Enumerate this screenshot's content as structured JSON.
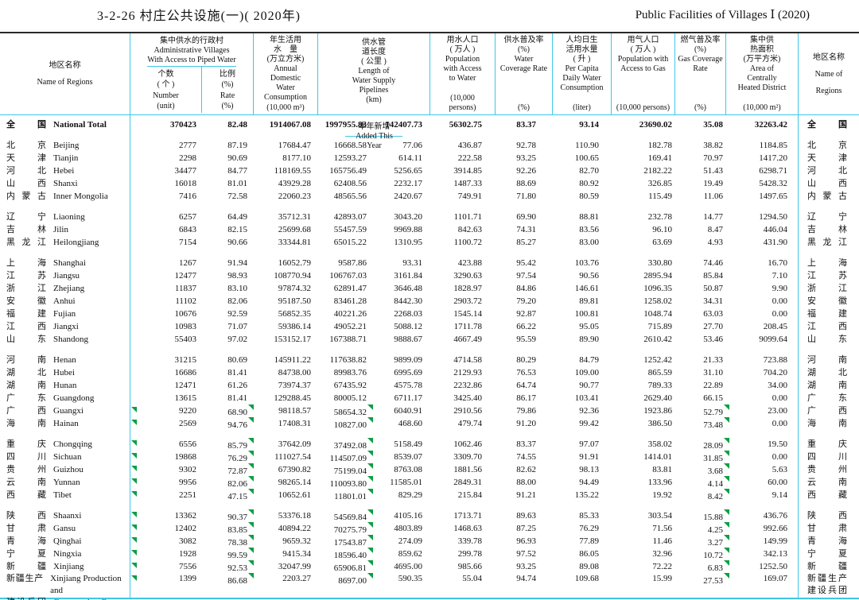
{
  "title": {
    "zh": "3-2-26  村庄公共设施(一)( 2020年)",
    "en": "Public Facilities of Villages  Ⅰ (2020)"
  },
  "colors": {
    "grid": "#3ec7e8",
    "flag_green": "#0e9e45",
    "top_rule": "#2a2a2a"
  },
  "header": {
    "left_region": {
      "zh": "地区名称",
      "en": "Name of Regions"
    },
    "right_region": {
      "lines": "地区名称|Name of|Regions"
    },
    "piped_group": {
      "label": "集中供水的行政村|Administrative Villages|With Access to Piped Water",
      "number": "个数|( 个 )|Number|(unit)",
      "rate": "比例|(%)|Rate|(%)"
    },
    "annual": {
      "label": "年生活用|水　量|(万立方米)|Annual|Domestic|Water|Consumption",
      "unit": "(10,000 m³)"
    },
    "pipeline": {
      "label": "供水管|道长度|( 公里 )|Length of|Water Supply|Pipelines",
      "unit": "(km)",
      "added": "本年新增|Added  This|Year"
    },
    "pop_water": {
      "label": "用水人口|( 万人 )|Population|with Access|to Water",
      "unit": "(10,000|persons)"
    },
    "water_cov": {
      "label": "供水普及率|(%)|Water|Coverage Rate",
      "unit": "(%)"
    },
    "per_capita": {
      "label": "人均日生|活用水量|( 升 )|Per Capita|Daily Water|Consumption",
      "unit": "(liter)"
    },
    "pop_gas": {
      "label": "用气人口|( 万人 )|Population with|Access to Gas",
      "unit": "(10,000 persons)"
    },
    "gas_cov": {
      "label": "燃气普及率|(%)|Gas Coverage|Rate",
      "unit": "(%)"
    },
    "heated": {
      "label": "集中供|热面积|(万平方米)|Area of|Centrally|Heated District",
      "unit": "(10,000 m²)"
    }
  },
  "rows": [
    {
      "zh": "全国",
      "en": "National Total",
      "bold": true,
      "values": [
        "370423",
        "82.48",
        "1914067.08",
        "1997955.83",
        "142407.73",
        "56302.75",
        "83.37",
        "93.14",
        "23690.02",
        "35.08",
        "32263.42"
      ]
    },
    {
      "zh": "北京",
      "en": "Beijing",
      "gap": true,
      "values": [
        "2777",
        "87.19",
        "17684.47",
        "16668.58",
        "77.06",
        "436.87",
        "92.78",
        "110.90",
        "182.78",
        "38.82",
        "1184.85"
      ]
    },
    {
      "zh": "天津",
      "en": "Tianjin",
      "values": [
        "2298",
        "90.69",
        "8177.10",
        "12593.27",
        "614.11",
        "222.58",
        "93.25",
        "100.65",
        "169.41",
        "70.97",
        "1417.20"
      ]
    },
    {
      "zh": "河北",
      "en": "Hebei",
      "values": [
        "34477",
        "84.77",
        "118169.55",
        "165756.49",
        "5256.65",
        "3914.85",
        "92.26",
        "82.70",
        "2182.22",
        "51.43",
        "6298.71"
      ]
    },
    {
      "zh": "山西",
      "en": "Shanxi",
      "values": [
        "16018",
        "81.01",
        "43929.28",
        "62408.56",
        "2232.17",
        "1487.33",
        "88.69",
        "80.92",
        "326.85",
        "19.49",
        "5428.32"
      ]
    },
    {
      "zh": "内蒙古",
      "en": "Inner Mongolia",
      "values": [
        "7416",
        "72.58",
        "22060.23",
        "48565.56",
        "2420.67",
        "749.91",
        "71.80",
        "80.59",
        "115.49",
        "11.06",
        "1497.65"
      ]
    },
    {
      "zh": "辽宁",
      "en": "Liaoning",
      "gap": true,
      "values": [
        "6257",
        "64.49",
        "35712.31",
        "42893.07",
        "3043.20",
        "1101.71",
        "69.90",
        "88.81",
        "232.78",
        "14.77",
        "1294.50"
      ]
    },
    {
      "zh": "吉林",
      "en": "Jilin",
      "values": [
        "6843",
        "82.15",
        "25699.68",
        "55457.59",
        "9969.88",
        "842.63",
        "74.31",
        "83.56",
        "96.10",
        "8.47",
        "446.04"
      ]
    },
    {
      "zh": "黑龙江",
      "en": "Heilongjiang",
      "values": [
        "7154",
        "90.66",
        "33344.81",
        "65015.22",
        "1310.95",
        "1100.72",
        "85.27",
        "83.00",
        "63.69",
        "4.93",
        "431.90"
      ]
    },
    {
      "zh": "上海",
      "en": "Shanghai",
      "gap": true,
      "values": [
        "1267",
        "91.94",
        "16052.79",
        "9587.86",
        "93.31",
        "423.88",
        "95.42",
        "103.76",
        "330.80",
        "74.46",
        "16.70"
      ]
    },
    {
      "zh": "江苏",
      "en": "Jiangsu",
      "values": [
        "12477",
        "98.93",
        "108770.94",
        "106767.03",
        "3161.84",
        "3290.63",
        "97.54",
        "90.56",
        "2895.94",
        "85.84",
        "7.10"
      ]
    },
    {
      "zh": "浙江",
      "en": "Zhejiang",
      "values": [
        "11837",
        "83.10",
        "97874.32",
        "62891.47",
        "3646.48",
        "1828.97",
        "84.86",
        "146.61",
        "1096.35",
        "50.87",
        "9.90"
      ]
    },
    {
      "zh": "安徽",
      "en": "Anhui",
      "values": [
        "11102",
        "82.06",
        "95187.50",
        "83461.28",
        "8442.30",
        "2903.72",
        "79.20",
        "89.81",
        "1258.02",
        "34.31",
        "0.00"
      ]
    },
    {
      "zh": "福建",
      "en": "Fujian",
      "values": [
        "10676",
        "92.59",
        "56852.35",
        "40221.26",
        "2268.03",
        "1545.14",
        "92.87",
        "100.81",
        "1048.74",
        "63.03",
        "0.00"
      ]
    },
    {
      "zh": "江西",
      "en": "Jiangxi",
      "values": [
        "10983",
        "71.07",
        "59386.14",
        "49052.21",
        "5088.12",
        "1711.78",
        "66.22",
        "95.05",
        "715.89",
        "27.70",
        "208.45"
      ]
    },
    {
      "zh": "山东",
      "en": "Shandong",
      "values": [
        "55403",
        "97.02",
        "153152.17",
        "167388.71",
        "9888.67",
        "4667.49",
        "95.59",
        "89.90",
        "2610.42",
        "53.46",
        "9099.64"
      ]
    },
    {
      "zh": "河南",
      "en": "Henan",
      "gap": true,
      "values": [
        "31215",
        "80.69",
        "145911.22",
        "117638.82",
        "9899.09",
        "4714.58",
        "80.29",
        "84.79",
        "1252.42",
        "21.33",
        "723.88"
      ]
    },
    {
      "zh": "湖北",
      "en": "Hubei",
      "values": [
        "16686",
        "81.41",
        "84738.00",
        "89983.76",
        "6995.69",
        "2129.93",
        "76.53",
        "109.00",
        "865.59",
        "31.10",
        "704.20"
      ]
    },
    {
      "zh": "湖南",
      "en": "Hunan",
      "values": [
        "12471",
        "61.26",
        "73974.37",
        "67435.92",
        "4575.78",
        "2232.86",
        "64.74",
        "90.77",
        "789.33",
        "22.89",
        "34.00"
      ]
    },
    {
      "zh": "广东",
      "en": "Guangdong",
      "values": [
        "13615",
        "81.41",
        "129288.45",
        "80005.12",
        "6711.17",
        "3425.40",
        "86.17",
        "103.41",
        "2629.40",
        "66.15",
        "0.00"
      ]
    },
    {
      "zh": "广西",
      "en": "Guangxi",
      "flagged": true,
      "values": [
        "9220",
        "68.90",
        "98118.57",
        "58654.32",
        "6040.91",
        "2910.56",
        "79.86",
        "92.36",
        "1923.86",
        "52.79",
        "23.00"
      ]
    },
    {
      "zh": "海南",
      "en": "Hainan",
      "flagged": true,
      "values": [
        "2569",
        "94.76",
        "17408.31",
        "10827.00",
        "468.60",
        "479.74",
        "91.20",
        "99.42",
        "386.50",
        "73.48",
        "0.00"
      ]
    },
    {
      "zh": "重庆",
      "en": "Chongqing",
      "gap": true,
      "flagged": true,
      "values": [
        "6556",
        "85.79",
        "37642.09",
        "37492.08",
        "5158.49",
        "1062.46",
        "83.37",
        "97.07",
        "358.02",
        "28.09",
        "19.50"
      ]
    },
    {
      "zh": "四川",
      "en": "Sichuan",
      "flagged": true,
      "values": [
        "19868",
        "76.29",
        "111027.54",
        "114507.09",
        "8539.07",
        "3309.70",
        "74.55",
        "91.91",
        "1414.01",
        "31.85",
        "0.00"
      ]
    },
    {
      "zh": "贵州",
      "en": "Guizhou",
      "flagged": true,
      "values": [
        "9302",
        "72.87",
        "67390.82",
        "75199.04",
        "8763.08",
        "1881.56",
        "82.62",
        "98.13",
        "83.81",
        "3.68",
        "5.63"
      ]
    },
    {
      "zh": "云南",
      "en": "Yunnan",
      "flagged": true,
      "values": [
        "9956",
        "82.06",
        "98265.14",
        "110093.80",
        "11585.01",
        "2849.31",
        "88.00",
        "94.49",
        "133.96",
        "4.14",
        "60.00"
      ]
    },
    {
      "zh": "西藏",
      "en": "Tibet",
      "flagged": true,
      "values": [
        "2251",
        "47.15",
        "10652.61",
        "11801.01",
        "829.29",
        "215.84",
        "91.21",
        "135.22",
        "19.92",
        "8.42",
        "9.14"
      ]
    },
    {
      "zh": "陕西",
      "en": "Shaanxi",
      "gap": true,
      "flagged": true,
      "values": [
        "13362",
        "90.37",
        "53376.18",
        "54569.84",
        "4105.16",
        "1713.71",
        "89.63",
        "85.33",
        "303.54",
        "15.88",
        "436.76"
      ]
    },
    {
      "zh": "甘肃",
      "en": "Gansu",
      "flagged": true,
      "values": [
        "12402",
        "83.85",
        "40894.22",
        "70275.79",
        "4803.89",
        "1468.63",
        "87.25",
        "76.29",
        "71.56",
        "4.25",
        "992.66"
      ]
    },
    {
      "zh": "青海",
      "en": "Qinghai",
      "flagged": true,
      "values": [
        "3082",
        "78.38",
        "9659.32",
        "17543.87",
        "274.09",
        "339.78",
        "96.93",
        "77.89",
        "11.46",
        "3.27",
        "149.99"
      ]
    },
    {
      "zh": "宁夏",
      "en": "Ningxia",
      "flagged": true,
      "values": [
        "1928",
        "99.59",
        "9415.34",
        "18596.40",
        "859.62",
        "299.78",
        "97.52",
        "86.05",
        "32.96",
        "10.72",
        "342.13"
      ]
    },
    {
      "zh": "新疆",
      "en": "Xinjiang",
      "flagged": true,
      "values": [
        "7556",
        "92.53",
        "32047.99",
        "65906.81",
        "4695.00",
        "985.66",
        "93.25",
        "89.08",
        "72.22",
        "6.83",
        "1252.50"
      ]
    },
    {
      "zh": "新疆生产|建设兵团",
      "en": "Xinjiang Production and|Construction Corps",
      "flagged": true,
      "values": [
        "1399",
        "86.68",
        "2203.27",
        "8697.00",
        "590.35",
        "55.04",
        "94.74",
        "109.68",
        "15.99",
        "27.53",
        "169.07"
      ]
    }
  ]
}
